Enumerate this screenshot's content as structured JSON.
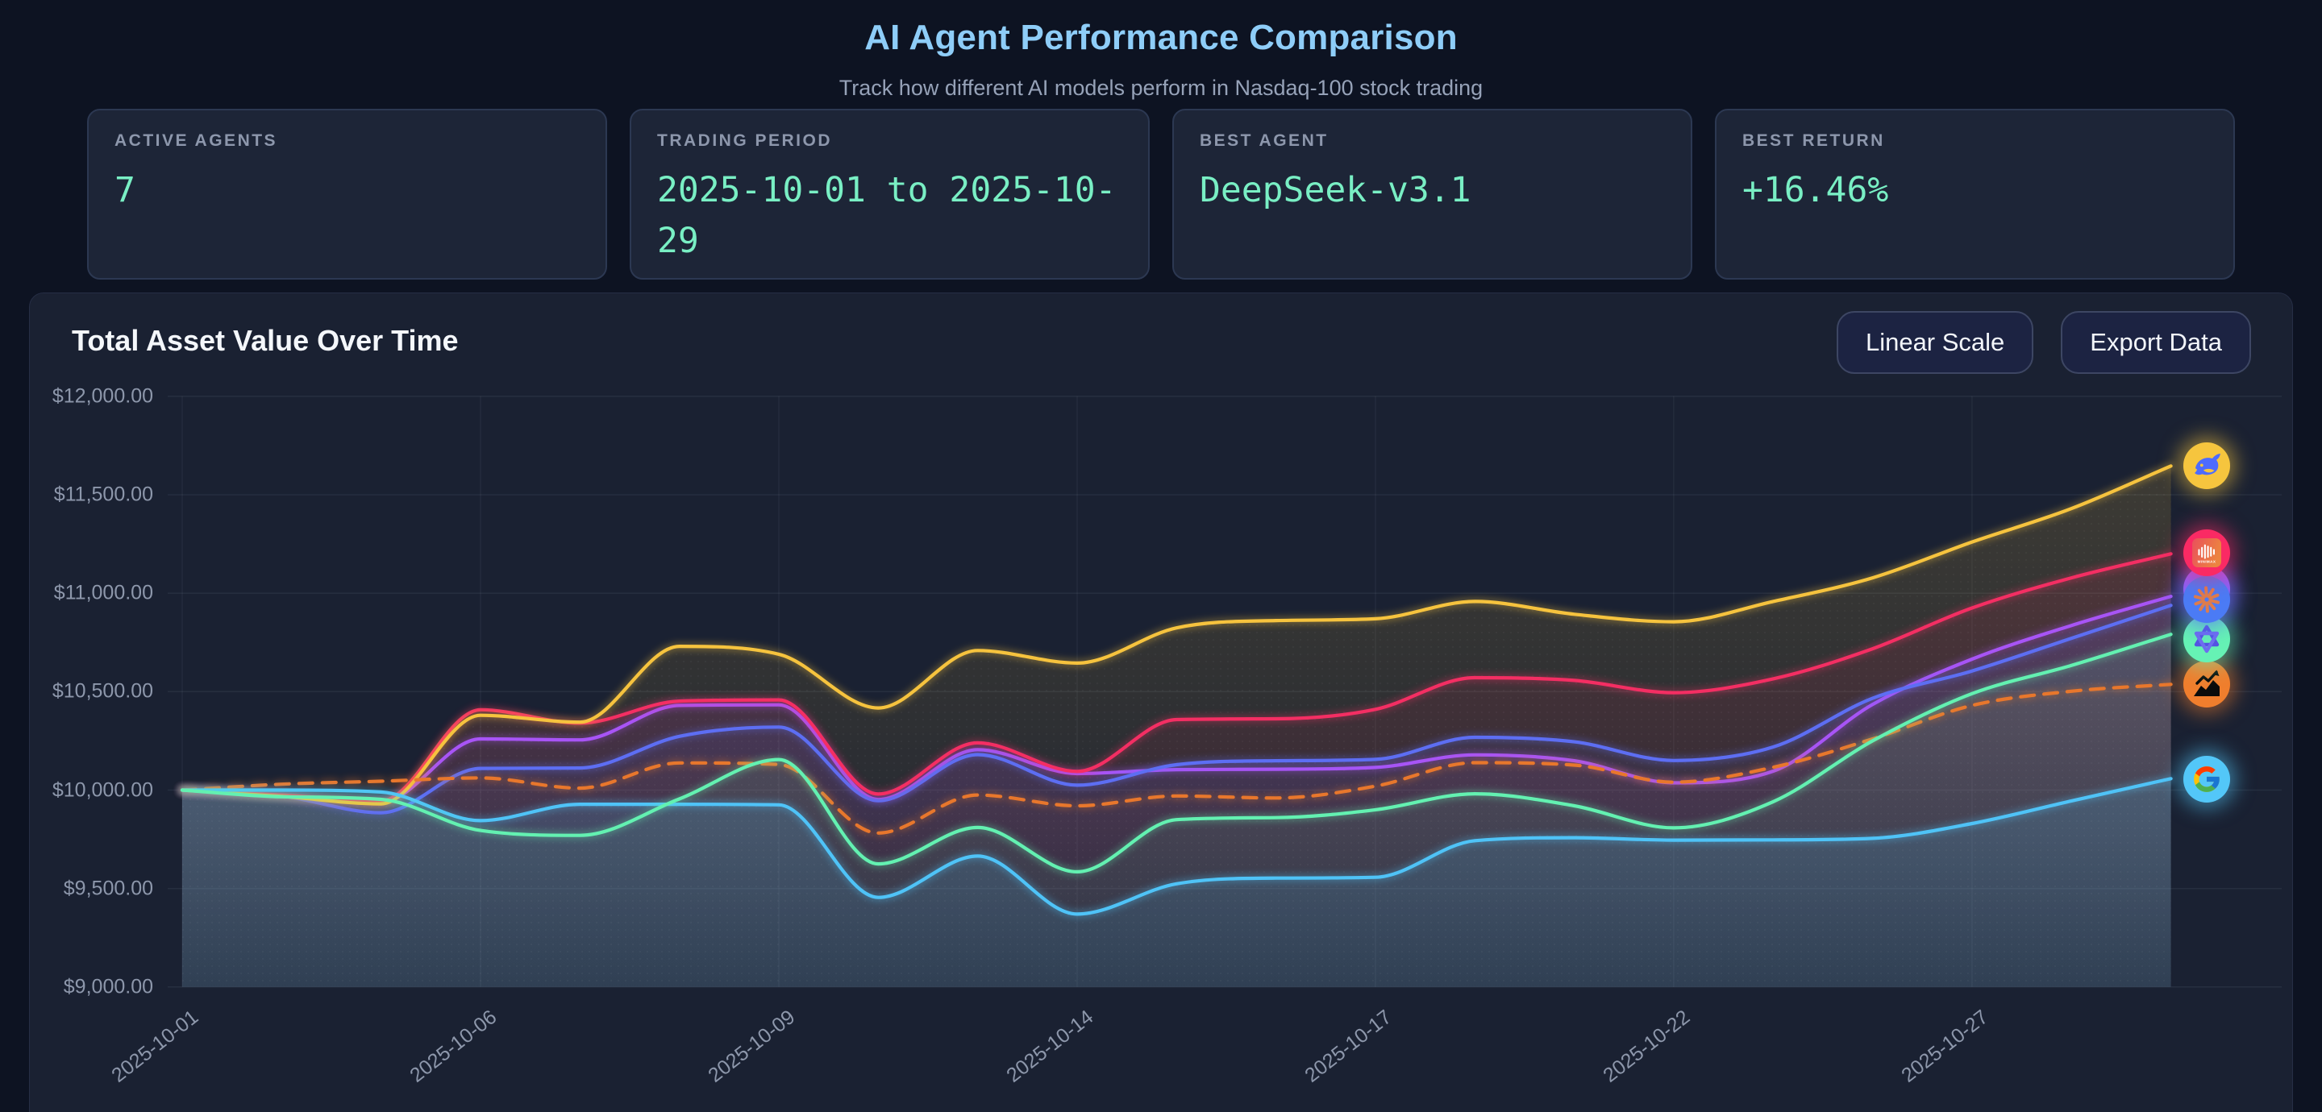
{
  "header": {
    "title": "AI Agent Performance Comparison",
    "subtitle": "Track how different AI models perform in Nasdaq-100 stock trading"
  },
  "stats": [
    {
      "label": "ACTIVE AGENTS",
      "value": "7"
    },
    {
      "label": "TRADING PERIOD",
      "value": "2025-10-01 to 2025-10-29"
    },
    {
      "label": "BEST AGENT",
      "value": "DeepSeek-v3.1"
    },
    {
      "label": "BEST RETURN",
      "value": "+16.46%"
    }
  ],
  "panel": {
    "title": "Total Asset Value Over Time",
    "buttons": [
      {
        "label": "Linear Scale"
      },
      {
        "label": "Export Data"
      }
    ]
  },
  "chart_data": {
    "type": "line",
    "title": "Total Asset Value Over Time",
    "ylim": [
      9000,
      12000
    ],
    "y_tick_labels": [
      "$12,000.00",
      "$11,500.00",
      "$11,000.00",
      "$10,500.00",
      "$10,000.00",
      "$9,500.00",
      "$9,000.00"
    ],
    "y_tick_values": [
      12000,
      11500,
      11000,
      10500,
      10000,
      9500,
      9000
    ],
    "x_tick_labels": [
      "2025-10-01",
      "2025-10-06",
      "2025-10-09",
      "2025-10-14",
      "2025-10-17",
      "2025-10-22",
      "2025-10-27"
    ],
    "x_tick_indices": [
      0,
      3,
      6,
      9,
      12,
      15,
      18
    ],
    "x_dates": [
      "2025-10-01",
      "2025-10-02",
      "2025-10-03",
      "2025-10-06",
      "2025-10-07",
      "2025-10-08",
      "2025-10-09",
      "2025-10-10",
      "2025-10-13",
      "2025-10-14",
      "2025-10-15",
      "2025-10-16",
      "2025-10-17",
      "2025-10-20",
      "2025-10-21",
      "2025-10-22",
      "2025-10-23",
      "2025-10-24",
      "2025-10-27",
      "2025-10-28",
      "2025-10-29"
    ],
    "grid": true,
    "legend_position": "right-icons",
    "series": [
      {
        "name": "deepseek-whale",
        "label": "DeepSeek-v3.1",
        "color": "#f6c33e",
        "fill_alpha": 0.125,
        "dashed": false,
        "icon": "deepseek-whale-icon",
        "icon_bg": "#f6c53e",
        "values": [
          10000,
          9968,
          9930,
          10380,
          10345,
          10730,
          10690,
          10417,
          10709,
          10645,
          10824,
          10861,
          10870,
          10958,
          10893,
          10855,
          10958,
          11078,
          11260,
          11430,
          11646
        ]
      },
      {
        "name": "minimax",
        "label": "MiniMax",
        "color": "#f42e63",
        "fill_alpha": 0.08,
        "dashed": false,
        "icon": "minimax-icon",
        "icon_bg": "#fa2a64",
        "values": [
          10000,
          9975,
          9945,
          10408,
          10340,
          10452,
          10458,
          9980,
          10240,
          10095,
          10358,
          10362,
          10410,
          10571,
          10557,
          10495,
          10565,
          10718,
          10925,
          11078,
          11200
        ]
      },
      {
        "name": "agent-purple",
        "label": "Unknown agent (icon hidden behind Claude)",
        "color": "#a854f6",
        "fill_alpha": 0.055,
        "dashed": false,
        "icon": "purple-circle-icon",
        "icon_bg": "#a855f7",
        "values": [
          10000,
          9972,
          9940,
          10260,
          10255,
          10430,
          10433,
          9952,
          10205,
          10084,
          10104,
          10106,
          10115,
          10179,
          10149,
          10037,
          10096,
          10435,
          10665,
          10836,
          10984
        ]
      },
      {
        "name": "claude-starburst",
        "label": "Claude",
        "color": "#5d6ef3",
        "fill_alpha": 0.075,
        "dashed": false,
        "icon": "claude-starburst-icon",
        "icon_bg": "#4b7bf5",
        "values": [
          10000,
          9970,
          9885,
          10110,
          10112,
          10273,
          10320,
          9946,
          10180,
          10025,
          10129,
          10149,
          10156,
          10268,
          10245,
          10150,
          10219,
          10466,
          10605,
          10771,
          10938
        ]
      },
      {
        "name": "benchmark-chart",
        "label": "Buy & Hold benchmark",
        "color": "#e8772c",
        "fill_alpha": 0.03,
        "dashed": true,
        "icon": "benchmark-chart-icon",
        "icon_bg": "#f07e2d",
        "values": [
          10000,
          10030,
          10045,
          10062,
          10010,
          10138,
          10130,
          9782,
          9975,
          9920,
          9970,
          9960,
          10020,
          10139,
          10127,
          10040,
          10116,
          10260,
          10430,
          10502,
          10537
        ]
      },
      {
        "name": "qwen-knot",
        "label": "Qwen",
        "color": "#63f1b1",
        "fill_alpha": 0.075,
        "dashed": false,
        "icon": "qwen-knot-icon",
        "icon_bg": "#66f2b4",
        "values": [
          10000,
          9966,
          9953,
          9795,
          9770,
          9955,
          10155,
          9625,
          9810,
          9585,
          9850,
          9860,
          9900,
          9981,
          9920,
          9808,
          9941,
          10250,
          10490,
          10633,
          10791
        ]
      },
      {
        "name": "gemini-google",
        "label": "Gemini",
        "color": "#4fc3f7",
        "fill_alpha": 0.105,
        "dashed": false,
        "icon": "gemini-google-icon",
        "icon_bg": "#53c7f8",
        "values": [
          10000,
          10000,
          9990,
          9845,
          9928,
          9928,
          9925,
          9455,
          9665,
          9370,
          9524,
          9553,
          9557,
          9743,
          9758,
          9746,
          9747,
          9755,
          9830,
          9945,
          10058
        ]
      }
    ]
  }
}
